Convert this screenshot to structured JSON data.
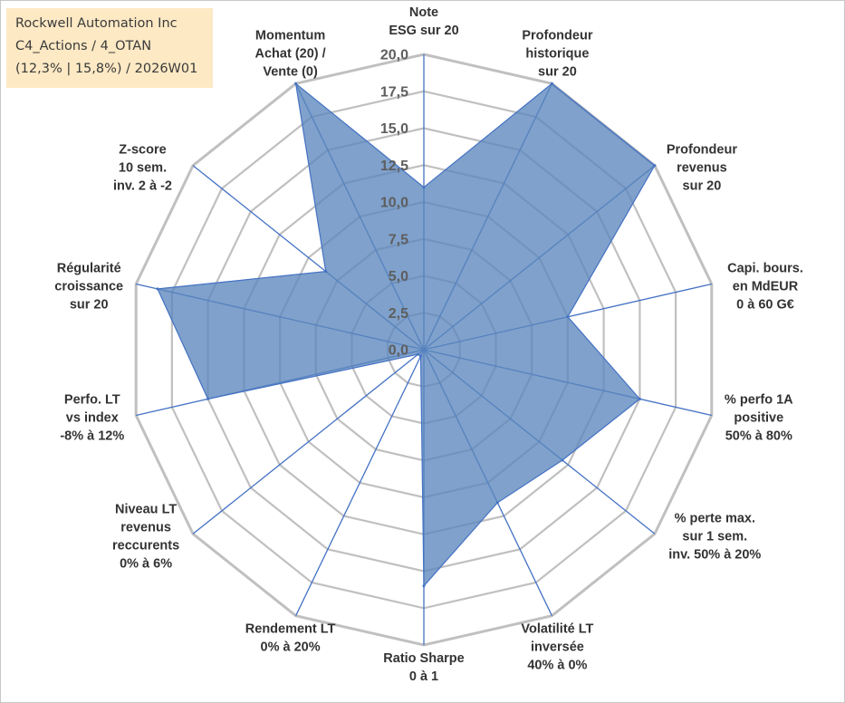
{
  "info_box": {
    "line1": "Rockwell Automation Inc",
    "line2": "C4_Actions / 4_OTAN",
    "line3": "(12,3% | 15,8%) / 2026W01"
  },
  "colors": {
    "fill": "#5b86bd",
    "fill_opacity": 0.78,
    "spoke": "#4472c4",
    "grid": "#c0c0c0",
    "tick_text": "#5e5e5e",
    "label_text": "#333333",
    "info_bg": "#fde9c4"
  },
  "chart_data": {
    "type": "radar",
    "title": "",
    "rlim": [
      0,
      20
    ],
    "grid": true,
    "legend": "none",
    "tick_labels": [
      "0,0",
      "2,5",
      "5,0",
      "7,5",
      "10,0",
      "12,5",
      "15,0",
      "17,5",
      "20,0"
    ],
    "axes": [
      {
        "lines": [
          "Note",
          "ESG sur 20"
        ]
      },
      {
        "lines": [
          "Profondeur",
          "historique",
          "sur 20"
        ]
      },
      {
        "lines": [
          "Profondeur",
          "revenus",
          "sur 20"
        ]
      },
      {
        "lines": [
          "Capi. bours.",
          "en MdEUR",
          "0 à 60 G€"
        ]
      },
      {
        "lines": [
          "% perfo 1A",
          "positive",
          "50% à 80%"
        ]
      },
      {
        "lines": [
          "% perte max.",
          "sur 1 sem.",
          "inv. 50% à 20%"
        ]
      },
      {
        "lines": [
          "Volatilité LT",
          "inversée",
          "40% à 0%"
        ]
      },
      {
        "lines": [
          "Ratio Sharpe",
          "0 à 1"
        ]
      },
      {
        "lines": [
          "Rendement LT",
          "0% à 20%"
        ]
      },
      {
        "lines": [
          "Niveau LT",
          "revenus",
          "reccurents",
          "0% à 6%"
        ]
      },
      {
        "lines": [
          "Perfo. LT",
          "vs index",
          "-8% à 12%"
        ]
      },
      {
        "lines": [
          "Régularité",
          "croissance",
          "sur 20"
        ]
      },
      {
        "lines": [
          "Z-score",
          "10 sem.",
          "inv. 2 à -2"
        ]
      },
      {
        "lines": [
          "Momentum",
          "Achat (20) /",
          "Vente (0)"
        ]
      }
    ],
    "series": [
      {
        "values": [
          11,
          20,
          20,
          10,
          15,
          12,
          11.5,
          16,
          0.5,
          0.5,
          15,
          18.5,
          8.5,
          20
        ]
      }
    ]
  }
}
